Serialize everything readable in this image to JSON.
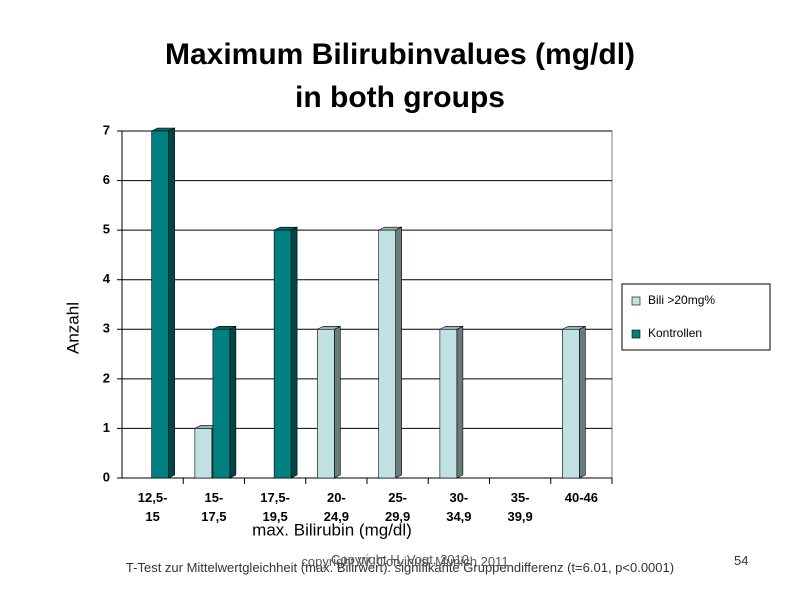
{
  "chart_data": {
    "type": "bar",
    "title": [
      "Maximum Bilirubinvalues (mg/dl)",
      "in both groups"
    ],
    "x_label": "max. Bilirubin (mg/dl)",
    "y_label": "Anzahl",
    "categories": [
      "12,5-15",
      "15-17,5",
      "17,5-19,5",
      "20-24,9",
      "25-29,9",
      "30-34,9",
      "35-39,9",
      "40-46"
    ],
    "series": [
      {
        "name": "Bili >20mg%",
        "color": "#c0e0e2",
        "values": [
          0,
          1,
          0,
          3,
          5,
          3,
          0,
          3
        ]
      },
      {
        "name": "Kontrollen",
        "color": "#008080",
        "values": [
          7,
          3,
          5,
          0,
          0,
          0,
          0,
          0
        ]
      }
    ],
    "ylim": [
      0,
      7
    ],
    "yticks": [
      0,
      1,
      2,
      3,
      4,
      5,
      6,
      7
    ],
    "grid": true,
    "legend": "right"
  },
  "footer": {
    "note": "T-Test zur Mittelwertgleichheit (max. Bilirwert): signifikante Gruppendifferenz (t=6.01, p<0.0001)",
    "copyright": [
      "Copyright H. Vogt, 2010",
      "copyright W. Corvinus, Munich 2011"
    ],
    "page": "54"
  }
}
